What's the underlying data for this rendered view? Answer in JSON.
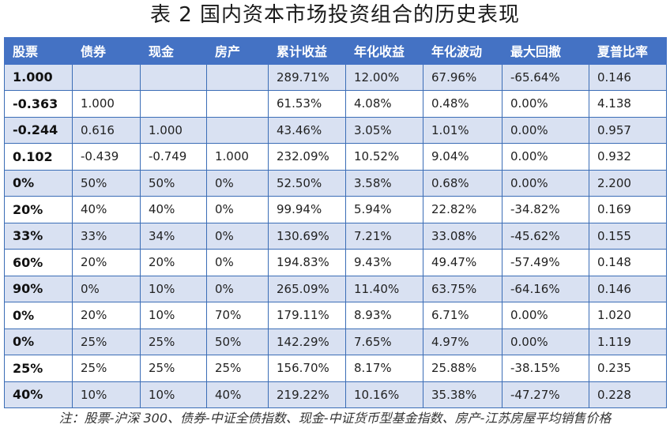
{
  "title": "表 2  国内资本市场投资组合的历史表现",
  "headers": [
    "股票",
    "债券",
    "现金",
    "房产",
    "累计收益",
    "年化收益",
    "年化波动",
    "最大回撤",
    "夏普比率"
  ],
  "rows": [
    [
      "1.000",
      "",
      "",
      "",
      "289.71%",
      "12.00%",
      "67.96%",
      "-65.64%",
      "0.146"
    ],
    [
      "-0.363",
      "1.000",
      "",
      "",
      "61.53%",
      "4.08%",
      "0.48%",
      "0.00%",
      "4.138"
    ],
    [
      "-0.244",
      "0.616",
      "1.000",
      "",
      "43.46%",
      "3.05%",
      "1.01%",
      "0.00%",
      "0.957"
    ],
    [
      "0.102",
      "-0.439",
      "-0.749",
      "1.000",
      "232.09%",
      "10.52%",
      "9.04%",
      "0.00%",
      "0.932"
    ],
    [
      "0%",
      "50%",
      "50%",
      "0%",
      "52.50%",
      "3.58%",
      "0.68%",
      "0.00%",
      "2.200"
    ],
    [
      "20%",
      "40%",
      "40%",
      "0%",
      "99.94%",
      "5.94%",
      "22.82%",
      "-34.82%",
      "0.169"
    ],
    [
      "33%",
      "33%",
      "34%",
      "0%",
      "130.69%",
      "7.21%",
      "33.08%",
      "-45.62%",
      "0.155"
    ],
    [
      "60%",
      "20%",
      "20%",
      "0%",
      "194.83%",
      "9.43%",
      "49.47%",
      "-57.49%",
      "0.148"
    ],
    [
      "90%",
      "0%",
      "10%",
      "0%",
      "265.09%",
      "11.40%",
      "63.75%",
      "-64.16%",
      "0.146"
    ],
    [
      "0%",
      "20%",
      "10%",
      "70%",
      "179.11%",
      "8.93%",
      "6.71%",
      "0.00%",
      "1.020"
    ],
    [
      "0%",
      "25%",
      "25%",
      "50%",
      "142.29%",
      "7.65%",
      "4.97%",
      "0.00%",
      "1.119"
    ],
    [
      "25%",
      "25%",
      "25%",
      "25%",
      "156.70%",
      "8.17%",
      "25.88%",
      "-38.15%",
      "0.235"
    ],
    [
      "40%",
      "10%",
      "10%",
      "40%",
      "219.22%",
      "10.16%",
      "35.38%",
      "-47.27%",
      "0.228"
    ]
  ],
  "note": "注：股票-沪深 300、债券-中证全债指数、现金-中证货币型基金指数、房产-江苏房屋平均销售价格"
}
